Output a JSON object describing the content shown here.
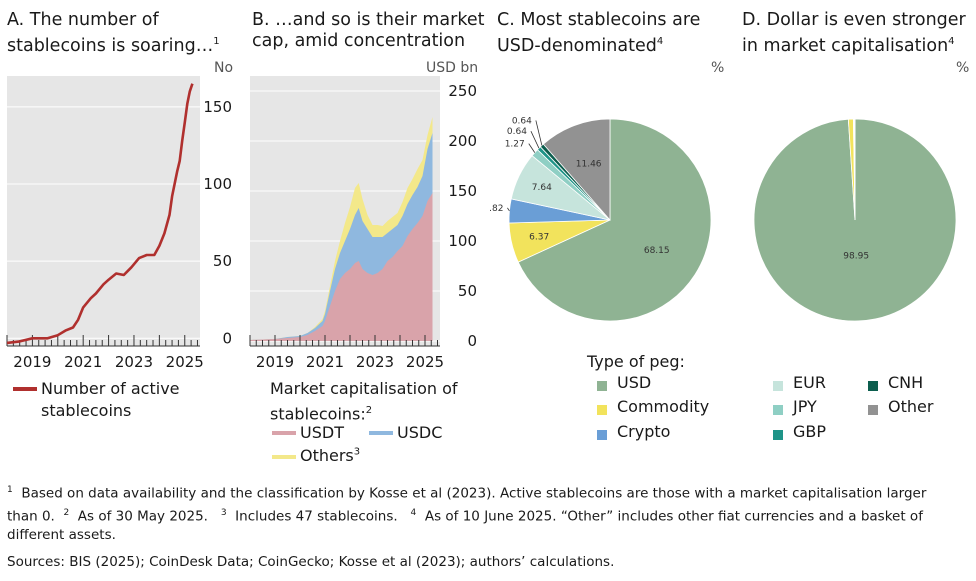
{
  "panel_a": {
    "title_line1": "A. The number of",
    "title_line2": "stablecoins is soaring…",
    "title_sup": "1",
    "unit": "No",
    "legend_label_line1": "Number of active",
    "legend_label_line2": "stablecoins",
    "line_color": "#b0302e"
  },
  "panel_b": {
    "title_line1": "B. …and so is their market",
    "title_line2": "cap, amid concentration",
    "unit": "USD bn",
    "legend_title_line1": "Market capitalisation of",
    "legend_title_line2": "stablecoins:",
    "legend_title_sup": "2",
    "legend_usdt": "USDT",
    "legend_usdc": "USDC",
    "legend_others": "Others",
    "legend_others_sup": "3",
    "color_usdt": "#d9a3aa",
    "color_usdc": "#8fb8df",
    "color_others": "#f3e88a"
  },
  "panel_c": {
    "title_line1": "C. Most stablecoins are",
    "title_line2": "USD-denominated",
    "title_sup": "4",
    "unit": "%"
  },
  "panel_d": {
    "title_line1": "D. Dollar is even stronger",
    "title_line2": "in market capitalisation",
    "title_sup": "4",
    "unit": "%"
  },
  "peg_legend": {
    "title": "Type of peg:",
    "items": [
      {
        "label": "USD",
        "color": "#8fb393"
      },
      {
        "label": "Commodity",
        "color": "#f2e35c"
      },
      {
        "label": "Crypto",
        "color": "#6a9ed6"
      },
      {
        "label": "EUR",
        "color": "#c6e4dc"
      },
      {
        "label": "JPY",
        "color": "#8fcfc4"
      },
      {
        "label": "GBP",
        "color": "#1e9488"
      },
      {
        "label": "CNH",
        "color": "#0c5e4e"
      },
      {
        "label": "Other",
        "color": "#929292"
      }
    ]
  },
  "footnotes": {
    "fn1_sup": "1",
    "fn1": "Based on data availability and the classification by Kosse et al (2023). Active stablecoins are those with a market capitalisation larger",
    "fn1b": "than 0.",
    "fn2_sup": "2",
    "fn2": "As of 30 May 2025.",
    "fn3_sup": "3",
    "fn3": "Includes 47 stablecoins.",
    "fn4_sup": "4",
    "fn4": "As of 10 June 2025. “Other” includes other fiat currencies and a basket of",
    "fn4b": "different assets.",
    "sources": "Sources: BIS (2025); CoinDesk Data; CoinGecko; Kosse et al (2023); authors’ calculations."
  },
  "chart_data": [
    {
      "type": "line",
      "title": "A. The number of stablecoins is soaring…",
      "ylabel": "No",
      "xlim": [
        2018.0,
        2025.6
      ],
      "ylim": [
        -5,
        170
      ],
      "yticks": [
        0,
        50,
        100,
        150
      ],
      "xticks": [
        "2019",
        "2021",
        "2023",
        "2025"
      ],
      "series": [
        {
          "name": "Number of active stablecoins",
          "x": [
            2018.0,
            2018.5,
            2019.0,
            2019.3,
            2019.6,
            2020.0,
            2020.3,
            2020.6,
            2020.8,
            2021.0,
            2021.3,
            2021.5,
            2021.8,
            2022.0,
            2022.3,
            2022.6,
            2022.9,
            2023.2,
            2023.5,
            2023.8,
            2024.0,
            2024.2,
            2024.4,
            2024.5,
            2024.6,
            2024.7,
            2024.8,
            2024.9,
            2025.0,
            2025.1,
            2025.2,
            2025.3
          ],
          "y": [
            -3,
            -2,
            0,
            0,
            0,
            2,
            5,
            7,
            12,
            20,
            26,
            29,
            35,
            38,
            42,
            41,
            46,
            52,
            54,
            54,
            60,
            68,
            80,
            92,
            100,
            108,
            115,
            128,
            140,
            152,
            160,
            165
          ]
        }
      ]
    },
    {
      "type": "area",
      "title": "B. …and so is their market cap, amid concentration",
      "ylabel": "USD bn",
      "xlim": [
        2018.0,
        2025.6
      ],
      "ylim": [
        -5,
        265
      ],
      "yticks": [
        0,
        50,
        100,
        150,
        200,
        250
      ],
      "xticks": [
        "2019",
        "2021",
        "2023",
        "2025"
      ],
      "x": [
        2018.0,
        2019.0,
        2019.5,
        2020.0,
        2020.3,
        2020.6,
        2020.9,
        2021.0,
        2021.2,
        2021.4,
        2021.6,
        2021.8,
        2022.0,
        2022.2,
        2022.35,
        2022.5,
        2022.7,
        2022.9,
        2023.1,
        2023.3,
        2023.5,
        2023.7,
        2023.9,
        2024.1,
        2024.3,
        2024.5,
        2024.7,
        2024.9,
        2025.1,
        2025.3
      ],
      "series": [
        {
          "name": "USDT",
          "values": [
            1,
            2,
            3,
            4,
            6,
            10,
            15,
            20,
            35,
            50,
            62,
            68,
            72,
            78,
            80,
            72,
            68,
            66,
            68,
            72,
            80,
            84,
            90,
            95,
            105,
            112,
            118,
            125,
            140,
            148
          ]
        },
        {
          "name": "USDC",
          "values": [
            0,
            0,
            1,
            1,
            2,
            3,
            5,
            7,
            15,
            22,
            26,
            32,
            40,
            48,
            53,
            48,
            44,
            38,
            36,
            32,
            28,
            28,
            26,
            30,
            32,
            34,
            36,
            40,
            52,
            60
          ]
        },
        {
          "name": "Others",
          "values": [
            0,
            0,
            0,
            0,
            0,
            1,
            2,
            3,
            5,
            8,
            12,
            18,
            22,
            27,
            25,
            22,
            14,
            12,
            12,
            11,
            12,
            12,
            12,
            14,
            16,
            16,
            18,
            16,
            14,
            16
          ]
        }
      ]
    },
    {
      "type": "pie",
      "title": "C. Most stablecoins are USD-denominated",
      "ylabel": "%",
      "categories": [
        "USD",
        "Commodity",
        "Crypto",
        "EUR",
        "JPY",
        "GBP",
        "CNH",
        "Other"
      ],
      "values": [
        68.15,
        6.37,
        3.82,
        7.64,
        1.27,
        0.64,
        0.64,
        11.46
      ]
    },
    {
      "type": "pie",
      "title": "D. Dollar is even stronger in market capitalisation",
      "ylabel": "%",
      "categories": [
        "USD",
        "Commodity",
        "Crypto",
        "EUR",
        "JPY",
        "GBP",
        "CNH",
        "Other"
      ],
      "values": [
        98.95,
        0.8,
        0.1,
        0.1,
        0.02,
        0.01,
        0.01,
        0.01
      ]
    }
  ]
}
